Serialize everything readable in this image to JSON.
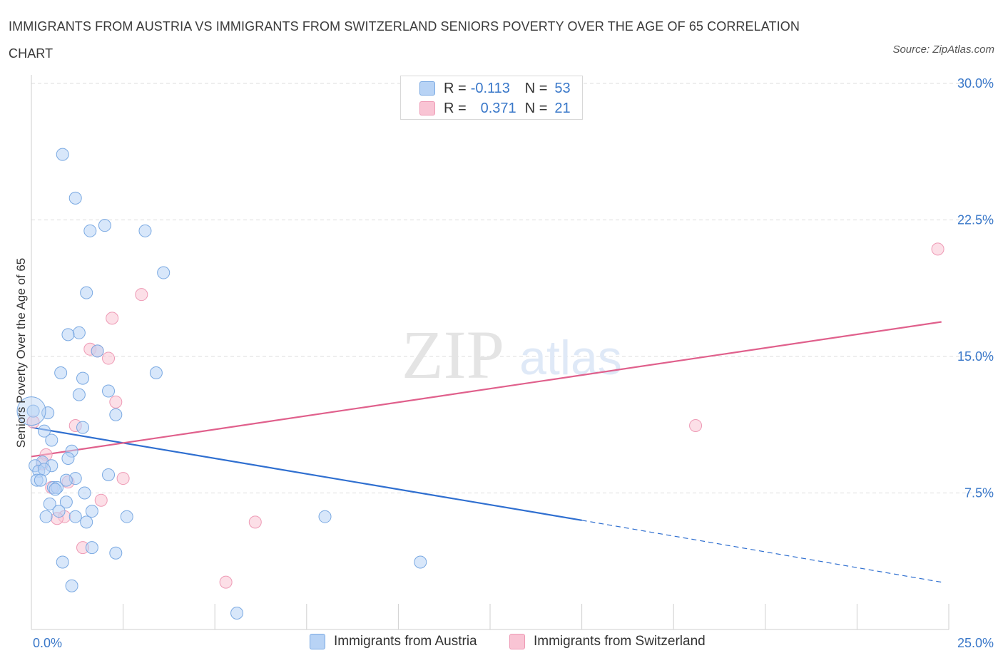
{
  "title": "IMMIGRANTS FROM AUSTRIA VS IMMIGRANTS FROM SWITZERLAND SENIORS POVERTY OVER THE AGE OF 65 CORRELATION CHART",
  "source": "Source: ZipAtlas.com",
  "watermark": {
    "zip": "ZIP",
    "atlas": "atlas"
  },
  "colors": {
    "austria_fill": "#b8d3f5",
    "austria_stroke": "#7aa9e2",
    "austria_line": "#2f6fd0",
    "swiss_fill": "#f9c4d4",
    "swiss_stroke": "#ee9ab5",
    "swiss_line": "#e0608c",
    "tick_text": "#3a78c9",
    "grid": "#dcdcdc"
  },
  "legend": {
    "rows": [
      {
        "r_label": "R =",
        "r_value": "-0.113",
        "n_label": "N =",
        "n_value": "53"
      },
      {
        "r_label": "R =",
        "r_value": "0.371",
        "n_label": "N =",
        "n_value": "21"
      }
    ]
  },
  "bottom_legend": [
    "Immigrants from Austria",
    "Immigrants from Switzerland"
  ],
  "chart_data": {
    "type": "scatter",
    "title": "IMMIGRANTS FROM AUSTRIA VS IMMIGRANTS FROM SWITZERLAND SENIORS POVERTY OVER THE AGE OF 65 CORRELATION CHART",
    "xlabel": "",
    "ylabel": "Seniors Poverty Over the Age of 65",
    "xlim": [
      0,
      25
    ],
    "ylim": [
      0,
      30
    ],
    "x_tick_labels": [
      "0.0%",
      "25.0%"
    ],
    "y_ticks": [
      7.5,
      15.0,
      22.5,
      30.0
    ],
    "y_tick_labels": [
      "7.5%",
      "15.0%",
      "22.5%",
      "30.0%"
    ],
    "series": [
      {
        "name": "Immigrants from Austria",
        "R": -0.113,
        "N": 53,
        "points": [
          [
            0.85,
            26.1
          ],
          [
            1.2,
            23.7
          ],
          [
            2.0,
            22.2
          ],
          [
            1.6,
            21.9
          ],
          [
            3.1,
            21.9
          ],
          [
            3.6,
            19.6
          ],
          [
            1.5,
            18.5
          ],
          [
            1.3,
            16.3
          ],
          [
            1.0,
            16.2
          ],
          [
            1.8,
            15.3
          ],
          [
            0.8,
            14.1
          ],
          [
            3.4,
            14.1
          ],
          [
            1.4,
            13.8
          ],
          [
            2.1,
            13.1
          ],
          [
            1.3,
            12.9
          ],
          [
            2.3,
            11.8
          ],
          [
            0.45,
            11.9
          ],
          [
            0.05,
            12.0
          ],
          [
            1.4,
            11.1
          ],
          [
            0.35,
            10.9
          ],
          [
            0.55,
            10.4
          ],
          [
            1.1,
            9.8
          ],
          [
            1.0,
            9.4
          ],
          [
            0.3,
            9.2
          ],
          [
            0.55,
            9.0
          ],
          [
            0.1,
            9.0
          ],
          [
            0.2,
            8.7
          ],
          [
            0.35,
            8.8
          ],
          [
            2.1,
            8.5
          ],
          [
            0.15,
            8.2
          ],
          [
            0.25,
            8.2
          ],
          [
            1.2,
            8.3
          ],
          [
            0.95,
            8.2
          ],
          [
            0.6,
            7.8
          ],
          [
            0.7,
            7.8
          ],
          [
            0.65,
            7.7
          ],
          [
            1.45,
            7.5
          ],
          [
            0.5,
            6.9
          ],
          [
            0.95,
            7.0
          ],
          [
            0.75,
            6.5
          ],
          [
            1.65,
            6.5
          ],
          [
            0.4,
            6.2
          ],
          [
            1.2,
            6.2
          ],
          [
            2.6,
            6.2
          ],
          [
            8.0,
            6.2
          ],
          [
            1.5,
            5.9
          ],
          [
            1.65,
            4.5
          ],
          [
            2.3,
            4.2
          ],
          [
            0.85,
            3.7
          ],
          [
            10.6,
            3.7
          ],
          [
            1.1,
            2.4
          ],
          [
            5.6,
            0.9
          ],
          [
            0.0,
            12.0
          ]
        ],
        "trend": {
          "x0": 0.0,
          "y0": 11.1,
          "x1": 15.0,
          "y1": 6.0,
          "x_dash_end": 24.8,
          "y_dash_end": 2.6
        }
      },
      {
        "name": "Immigrants from Switzerland",
        "R": 0.371,
        "N": 21,
        "points": [
          [
            24.7,
            20.9
          ],
          [
            3.0,
            18.4
          ],
          [
            2.2,
            17.1
          ],
          [
            1.6,
            15.4
          ],
          [
            1.8,
            15.3
          ],
          [
            2.1,
            14.9
          ],
          [
            2.3,
            12.5
          ],
          [
            0.05,
            11.4
          ],
          [
            1.2,
            11.2
          ],
          [
            18.1,
            11.2
          ],
          [
            0.4,
            9.6
          ],
          [
            0.3,
            9.1
          ],
          [
            2.5,
            8.3
          ],
          [
            1.0,
            8.1
          ],
          [
            0.55,
            7.8
          ],
          [
            1.9,
            7.1
          ],
          [
            0.9,
            6.2
          ],
          [
            0.7,
            6.1
          ],
          [
            6.1,
            5.9
          ],
          [
            1.4,
            4.5
          ],
          [
            5.3,
            2.6
          ]
        ],
        "trend": {
          "x0": 0.0,
          "y0": 9.5,
          "x1": 24.8,
          "y1": 16.9
        }
      }
    ]
  }
}
